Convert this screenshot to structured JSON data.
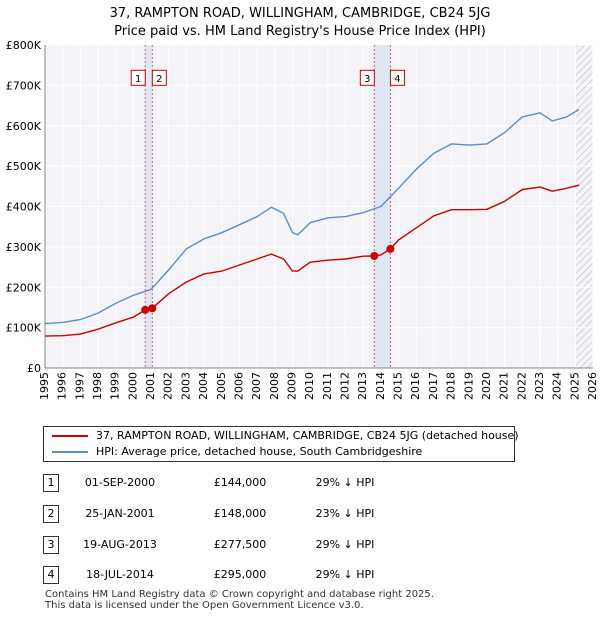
{
  "title_line1": "37, RAMPTON ROAD, WILLINGHAM, CAMBRIDGE, CB24 5JG",
  "title_line2": "Price paid vs. HM Land Registry's House Price Index (HPI)",
  "chart_data": {
    "type": "line",
    "title": "37, RAMPTON ROAD, WILLINGHAM, CAMBRIDGE, CB24 5JG — Price paid vs. HM Land Registry's House Price Index (HPI)",
    "xlabel": "",
    "ylabel": "",
    "xlim": [
      1995,
      2026
    ],
    "ylim": [
      0,
      800000
    ],
    "y_ticks": [
      0,
      100000,
      200000,
      300000,
      400000,
      500000,
      600000,
      700000,
      800000
    ],
    "y_tick_labels": [
      "£0",
      "£100K",
      "£200K",
      "£300K",
      "£400K",
      "£500K",
      "£600K",
      "£700K",
      "£800K"
    ],
    "x_ticks": [
      "1995",
      "1996",
      "1997",
      "1998",
      "1999",
      "2000",
      "2001",
      "2002",
      "2003",
      "2004",
      "2005",
      "2006",
      "2007",
      "2008",
      "2009",
      "2010",
      "2011",
      "2012",
      "2013",
      "2014",
      "2015",
      "2016",
      "2017",
      "2018",
      "2019",
      "2020",
      "2021",
      "2022",
      "2023",
      "2024",
      "2025",
      "2026"
    ],
    "grid": true,
    "series": [
      {
        "name": "37, RAMPTON ROAD, WILLINGHAM, CAMBRIDGE, CB24 5JG (detached house)",
        "color": "#cc0000",
        "x": [
          1995.0,
          1996.0,
          1997.0,
          1998.0,
          1999.0,
          2000.0,
          2000.67,
          2001.07,
          2002.0,
          2003.0,
          2004.0,
          2005.0,
          2006.0,
          2007.0,
          2007.8,
          2008.5,
          2009.0,
          2009.3,
          2010.0,
          2011.0,
          2012.0,
          2013.0,
          2013.63,
          2014.0,
          2014.54,
          2015.0,
          2016.0,
          2017.0,
          2018.0,
          2019.0,
          2020.0,
          2021.0,
          2022.0,
          2023.0,
          2023.7,
          2024.5,
          2025.2
        ],
        "values": [
          79000,
          80000,
          84000,
          96000,
          112000,
          126000,
          144000,
          148000,
          184000,
          213000,
          233000,
          240000,
          255000,
          270000,
          282000,
          270000,
          240000,
          240000,
          262000,
          267000,
          270000,
          277000,
          277500,
          280000,
          295000,
          317000,
          347000,
          377000,
          392000,
          392000,
          393000,
          413000,
          442000,
          448000,
          438000,
          445000,
          453000
        ]
      },
      {
        "name": "HPI: Average price, detached house, South Cambridgeshire",
        "color": "#5b8ec5",
        "x": [
          1995.0,
          1996.0,
          1997.0,
          1998.0,
          1999.0,
          2000.0,
          2001.0,
          2002.0,
          2003.0,
          2004.0,
          2005.0,
          2006.0,
          2007.0,
          2007.8,
          2008.5,
          2009.0,
          2009.3,
          2010.0,
          2011.0,
          2012.0,
          2013.0,
          2014.0,
          2015.0,
          2016.0,
          2017.0,
          2018.0,
          2019.0,
          2020.0,
          2021.0,
          2022.0,
          2023.0,
          2023.7,
          2024.5,
          2025.2
        ],
        "values": [
          110000,
          113000,
          120000,
          136000,
          160000,
          180000,
          195000,
          243000,
          295000,
          320000,
          335000,
          355000,
          375000,
          398000,
          383000,
          335000,
          330000,
          360000,
          372000,
          375000,
          385000,
          400000,
          445000,
          492000,
          532000,
          555000,
          552000,
          555000,
          583000,
          622000,
          632000,
          612000,
          622000,
          640000
        ]
      }
    ],
    "transactions": [
      {
        "label": "1",
        "x": 2000.67,
        "price": 144000
      },
      {
        "label": "2",
        "x": 2001.07,
        "price": 148000
      },
      {
        "label": "3",
        "x": 2013.63,
        "price": 277500
      },
      {
        "label": "4",
        "x": 2014.54,
        "price": 295000
      }
    ],
    "shaded_spans": [
      [
        2000.67,
        2001.07
      ],
      [
        2013.63,
        2014.54
      ]
    ],
    "hatched_from": 2025.0,
    "marker_boxes": [
      {
        "label": "1",
        "x": 2000.67
      },
      {
        "label": "2",
        "x": 2001.07
      },
      {
        "label": "3",
        "x": 2013.63
      },
      {
        "label": "4",
        "x": 2014.54
      }
    ]
  },
  "legend": {
    "items": [
      {
        "label": "37, RAMPTON ROAD, WILLINGHAM, CAMBRIDGE, CB24 5JG (detached house)",
        "color": "#cc0000"
      },
      {
        "label": "HPI: Average price, detached house, South Cambridgeshire",
        "color": "#5b8ec5"
      }
    ]
  },
  "transactions_table": [
    {
      "num": "1",
      "date": "01-SEP-2000",
      "price": "£144,000",
      "hpi": "29% ↓ HPI"
    },
    {
      "num": "2",
      "date": "25-JAN-2001",
      "price": "£148,000",
      "hpi": "23% ↓ HPI"
    },
    {
      "num": "3",
      "date": "19-AUG-2013",
      "price": "£277,500",
      "hpi": "29% ↓ HPI"
    },
    {
      "num": "4",
      "date": "18-JUL-2014",
      "price": "£295,000",
      "hpi": "29% ↓ HPI"
    }
  ],
  "footer_line1": "Contains HM Land Registry data © Crown copyright and database right 2025.",
  "footer_line2": "This data is licensed under the Open Government Licence v3.0."
}
